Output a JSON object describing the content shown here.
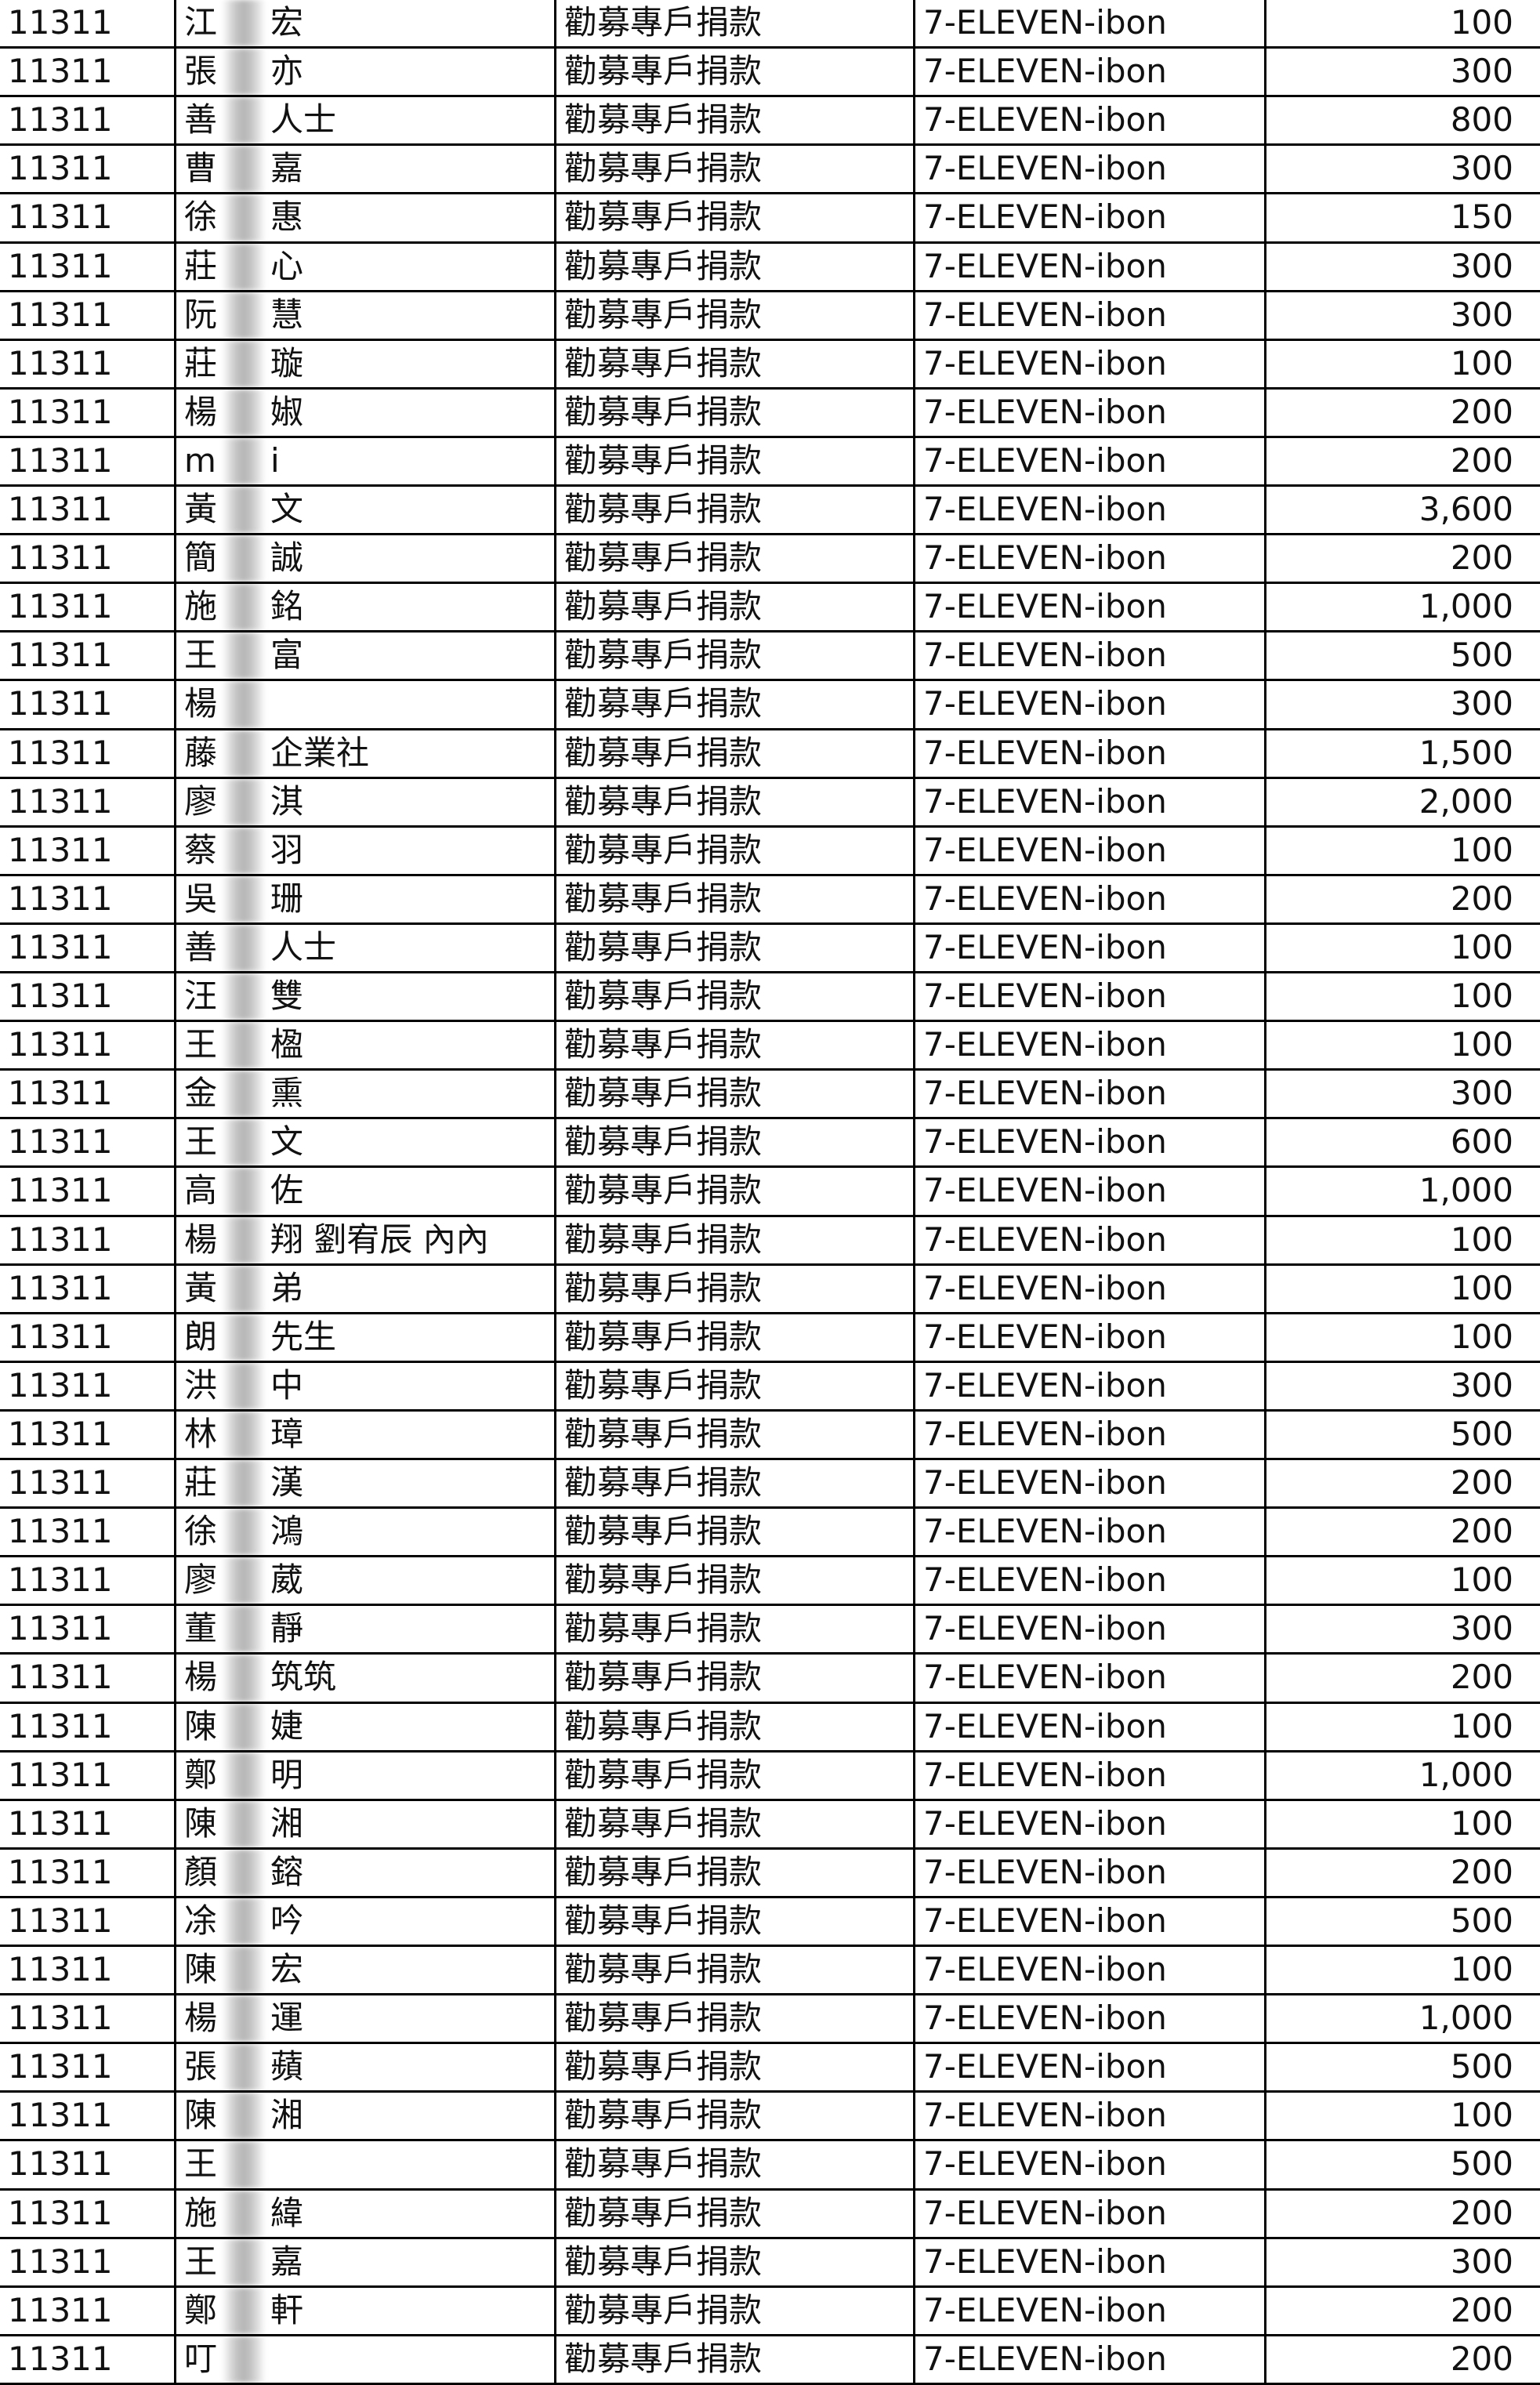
{
  "table": {
    "rows": [
      [
        "11311",
        [
          "江",
          "宏"
        ],
        "勸募專戶捐款",
        "7-ELEVEN-ibon",
        "100"
      ],
      [
        "11311",
        [
          "張",
          "亦"
        ],
        "勸募專戶捐款",
        "7-ELEVEN-ibon",
        "300"
      ],
      [
        "11311",
        [
          "善",
          "人士"
        ],
        "勸募專戶捐款",
        "7-ELEVEN-ibon",
        "800"
      ],
      [
        "11311",
        [
          "曹",
          "嘉"
        ],
        "勸募專戶捐款",
        "7-ELEVEN-ibon",
        "300"
      ],
      [
        "11311",
        [
          "徐",
          "惠"
        ],
        "勸募專戶捐款",
        "7-ELEVEN-ibon",
        "150"
      ],
      [
        "11311",
        [
          "莊",
          "心"
        ],
        "勸募專戶捐款",
        "7-ELEVEN-ibon",
        "300"
      ],
      [
        "11311",
        [
          "阮",
          "慧"
        ],
        "勸募專戶捐款",
        "7-ELEVEN-ibon",
        "300"
      ],
      [
        "11311",
        [
          "莊",
          "璇"
        ],
        "勸募專戶捐款",
        "7-ELEVEN-ibon",
        "100"
      ],
      [
        "11311",
        [
          "楊",
          "婌"
        ],
        "勸募專戶捐款",
        "7-ELEVEN-ibon",
        "200"
      ],
      [
        "11311",
        [
          "m",
          "i"
        ],
        "勸募專戶捐款",
        "7-ELEVEN-ibon",
        "200"
      ],
      [
        "11311",
        [
          "黃",
          "文"
        ],
        "勸募專戶捐款",
        "7-ELEVEN-ibon",
        "3,600"
      ],
      [
        "11311",
        [
          "簡",
          "誠"
        ],
        "勸募專戶捐款",
        "7-ELEVEN-ibon",
        "200"
      ],
      [
        "11311",
        [
          "施",
          "銘"
        ],
        "勸募專戶捐款",
        "7-ELEVEN-ibon",
        "1,000"
      ],
      [
        "11311",
        [
          "王",
          "富"
        ],
        "勸募專戶捐款",
        "7-ELEVEN-ibon",
        "500"
      ],
      [
        "11311",
        [
          "楊"
        ],
        "勸募專戶捐款",
        "7-ELEVEN-ibon",
        "300"
      ],
      [
        "11311",
        [
          "藤",
          "企業社"
        ],
        "勸募專戶捐款",
        "7-ELEVEN-ibon",
        "1,500"
      ],
      [
        "11311",
        [
          "廖",
          "淇"
        ],
        "勸募專戶捐款",
        "7-ELEVEN-ibon",
        "2,000"
      ],
      [
        "11311",
        [
          "蔡",
          "羽"
        ],
        "勸募專戶捐款",
        "7-ELEVEN-ibon",
        "100"
      ],
      [
        "11311",
        [
          "吳",
          "珊"
        ],
        "勸募專戶捐款",
        "7-ELEVEN-ibon",
        "200"
      ],
      [
        "11311",
        [
          "善",
          "人士"
        ],
        "勸募專戶捐款",
        "7-ELEVEN-ibon",
        "100"
      ],
      [
        "11311",
        [
          "汪",
          "雙"
        ],
        "勸募專戶捐款",
        "7-ELEVEN-ibon",
        "100"
      ],
      [
        "11311",
        [
          "王",
          "楹"
        ],
        "勸募專戶捐款",
        "7-ELEVEN-ibon",
        "100"
      ],
      [
        "11311",
        [
          "金",
          "熏"
        ],
        "勸募專戶捐款",
        "7-ELEVEN-ibon",
        "300"
      ],
      [
        "11311",
        [
          "王",
          "文"
        ],
        "勸募專戶捐款",
        "7-ELEVEN-ibon",
        "600"
      ],
      [
        "11311",
        [
          "高",
          "佐"
        ],
        "勸募專戶捐款",
        "7-ELEVEN-ibon",
        "1,000"
      ],
      [
        "11311",
        [
          "楊",
          "翔 劉宥辰 內內"
        ],
        "勸募專戶捐款",
        "7-ELEVEN-ibon",
        "100"
      ],
      [
        "11311",
        [
          "黃",
          "弟"
        ],
        "勸募專戶捐款",
        "7-ELEVEN-ibon",
        "100"
      ],
      [
        "11311",
        [
          "朗",
          "先生"
        ],
        "勸募專戶捐款",
        "7-ELEVEN-ibon",
        "100"
      ],
      [
        "11311",
        [
          "洪",
          "中"
        ],
        "勸募專戶捐款",
        "7-ELEVEN-ibon",
        "300"
      ],
      [
        "11311",
        [
          "林",
          "璋"
        ],
        "勸募專戶捐款",
        "7-ELEVEN-ibon",
        "500"
      ],
      [
        "11311",
        [
          "莊",
          "漢"
        ],
        "勸募專戶捐款",
        "7-ELEVEN-ibon",
        "200"
      ],
      [
        "11311",
        [
          "徐",
          "鴻"
        ],
        "勸募專戶捐款",
        "7-ELEVEN-ibon",
        "200"
      ],
      [
        "11311",
        [
          "廖",
          "葳"
        ],
        "勸募專戶捐款",
        "7-ELEVEN-ibon",
        "100"
      ],
      [
        "11311",
        [
          "董",
          "靜"
        ],
        "勸募專戶捐款",
        "7-ELEVEN-ibon",
        "300"
      ],
      [
        "11311",
        [
          "楊",
          "筑筑"
        ],
        "勸募專戶捐款",
        "7-ELEVEN-ibon",
        "200"
      ],
      [
        "11311",
        [
          "陳",
          "婕"
        ],
        "勸募專戶捐款",
        "7-ELEVEN-ibon",
        "100"
      ],
      [
        "11311",
        [
          "鄭",
          "明"
        ],
        "勸募專戶捐款",
        "7-ELEVEN-ibon",
        "1,000"
      ],
      [
        "11311",
        [
          "陳",
          "湘"
        ],
        "勸募專戶捐款",
        "7-ELEVEN-ibon",
        "100"
      ],
      [
        "11311",
        [
          "顏",
          "鎔"
        ],
        "勸募專戶捐款",
        "7-ELEVEN-ibon",
        "200"
      ],
      [
        "11311",
        [
          "凃",
          "吟"
        ],
        "勸募專戶捐款",
        "7-ELEVEN-ibon",
        "500"
      ],
      [
        "11311",
        [
          "陳",
          "宏"
        ],
        "勸募專戶捐款",
        "7-ELEVEN-ibon",
        "100"
      ],
      [
        "11311",
        [
          "楊",
          "運"
        ],
        "勸募專戶捐款",
        "7-ELEVEN-ibon",
        "1,000"
      ],
      [
        "11311",
        [
          "張",
          "蘋"
        ],
        "勸募專戶捐款",
        "7-ELEVEN-ibon",
        "500"
      ],
      [
        "11311",
        [
          "陳",
          "湘"
        ],
        "勸募專戶捐款",
        "7-ELEVEN-ibon",
        "100"
      ],
      [
        "11311",
        [
          "王"
        ],
        "勸募專戶捐款",
        "7-ELEVEN-ibon",
        "500"
      ],
      [
        "11311",
        [
          "施",
          "緯"
        ],
        "勸募專戶捐款",
        "7-ELEVEN-ibon",
        "200"
      ],
      [
        "11311",
        [
          "王",
          "嘉"
        ],
        "勸募專戶捐款",
        "7-ELEVEN-ibon",
        "300"
      ],
      [
        "11311",
        [
          "鄭",
          "軒"
        ],
        "勸募專戶捐款",
        "7-ELEVEN-ibon",
        "200"
      ],
      [
        "11311",
        [
          "叮"
        ],
        "勸募專戶捐款",
        "7-ELEVEN-ibon",
        "200"
      ]
    ]
  }
}
